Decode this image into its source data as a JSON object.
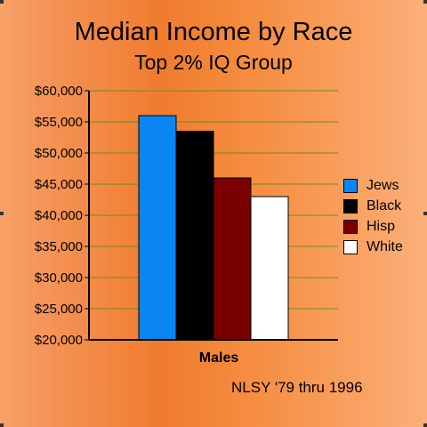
{
  "colors": {
    "grid": "#6f8a2b",
    "axis": "#000000"
  },
  "chart_data": {
    "type": "bar",
    "title": "Median Income by Race",
    "subtitle": "Top 2% IQ Group",
    "xlabel": "Males",
    "ylabel": "",
    "categories": [
      "Males"
    ],
    "ylim": [
      20000,
      60000
    ],
    "yticks": [
      {
        "value": 60000,
        "label": "$60,000"
      },
      {
        "value": 55000,
        "label": "$55,000"
      },
      {
        "value": 50000,
        "label": "$50,000"
      },
      {
        "value": 45000,
        "label": "$45,000"
      },
      {
        "value": 40000,
        "label": "$40,000"
      },
      {
        "value": 35000,
        "label": "$35,000"
      },
      {
        "value": 30000,
        "label": "$30,000"
      },
      {
        "value": 25000,
        "label": "$25,000"
      },
      {
        "value": 20000,
        "label": "$20,000"
      }
    ],
    "series": [
      {
        "name": "Jews",
        "color": "#0a86f4",
        "values": [
          56000
        ]
      },
      {
        "name": "Black",
        "color": "#000000",
        "values": [
          53500
        ]
      },
      {
        "name": "Hisp",
        "color": "#7a0000",
        "values": [
          46000
        ]
      },
      {
        "name": "White",
        "color": "#ffffff",
        "values": [
          43000
        ]
      }
    ],
    "grid": true,
    "legend_position": "right",
    "source_note": "NLSY '79 thru 1996"
  }
}
